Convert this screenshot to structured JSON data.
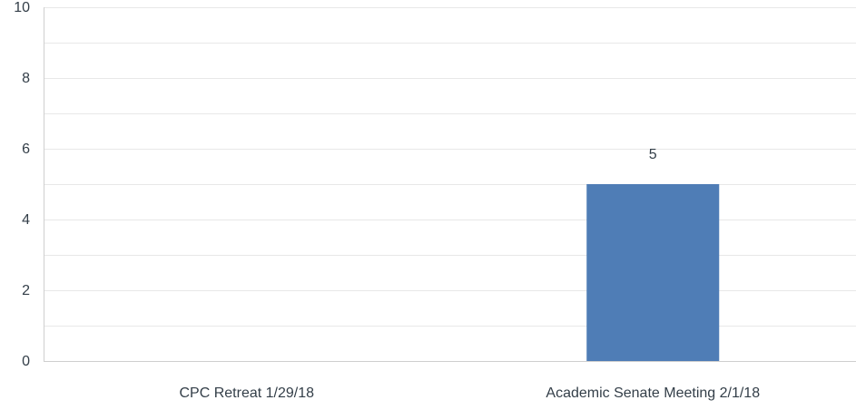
{
  "chart_data": {
    "type": "bar",
    "categories": [
      "CPC Retreat 1/29/18",
      "Academic Senate Meeting 2/1/18"
    ],
    "values": [
      0,
      5
    ],
    "data_labels": [
      "",
      "5"
    ],
    "title": "",
    "xlabel": "",
    "ylabel": "",
    "ylim": [
      0,
      10
    ],
    "yticks": [
      0,
      2,
      4,
      6,
      8,
      10
    ],
    "gridlines": true,
    "minor_gridlines": true,
    "legend": "none",
    "colors": {
      "bar": "#4f7db6",
      "grid": "#e8e8e8",
      "axis": "#cfcfcf",
      "text": "#333e48"
    }
  }
}
